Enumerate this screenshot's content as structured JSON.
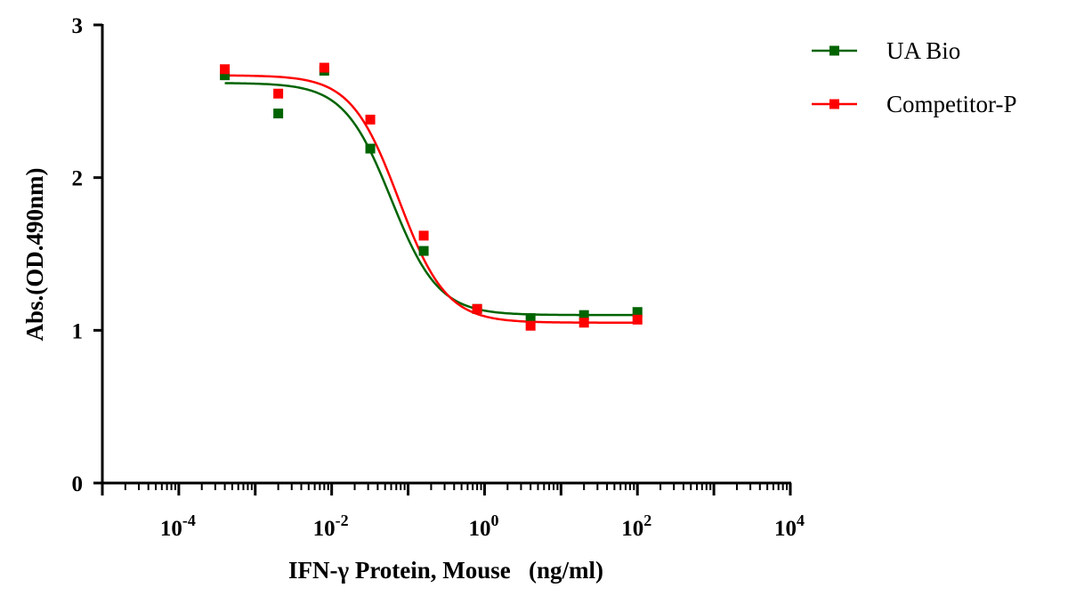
{
  "chart_data": {
    "type": "scatter",
    "xscale": "log10",
    "xlim": [
      1e-05,
      10000
    ],
    "ylim": [
      0,
      3
    ],
    "grid": false,
    "legend_position": "top-right",
    "xlabel": "IFN-γ Protein, Mouse   (ng/ml)",
    "ylabel": "Abs.(OD.490nm)",
    "y_ticks": [
      "0",
      "1",
      "2",
      "3"
    ],
    "x_tick_labels": [
      {
        "base": "10",
        "exp": "-4"
      },
      {
        "base": "10",
        "exp": "-2"
      },
      {
        "base": "10",
        "exp": "0"
      },
      {
        "base": "10",
        "exp": "2"
      },
      {
        "base": "10",
        "exp": "4"
      }
    ],
    "series": [
      {
        "name": "UA Bio",
        "color": "#006400",
        "x": [
          0.0004,
          0.002,
          0.008,
          0.032,
          0.16,
          0.8,
          4,
          20,
          100
        ],
        "y": [
          2.67,
          2.42,
          2.7,
          2.19,
          1.52,
          1.14,
          1.08,
          1.1,
          1.12
        ],
        "fit": {
          "model": "4PL",
          "top": 2.62,
          "bottom": 1.1,
          "ec50": 0.06,
          "hill": 1.4
        }
      },
      {
        "name": "Competitor-P",
        "color": "#ff0000",
        "x": [
          0.0004,
          0.002,
          0.008,
          0.032,
          0.16,
          0.8,
          4,
          20,
          100
        ],
        "y": [
          2.71,
          2.55,
          2.72,
          2.38,
          1.62,
          1.14,
          1.03,
          1.05,
          1.07
        ],
        "fit": {
          "model": "4PL",
          "top": 2.67,
          "bottom": 1.05,
          "ec50": 0.075,
          "hill": 1.4
        }
      }
    ]
  }
}
